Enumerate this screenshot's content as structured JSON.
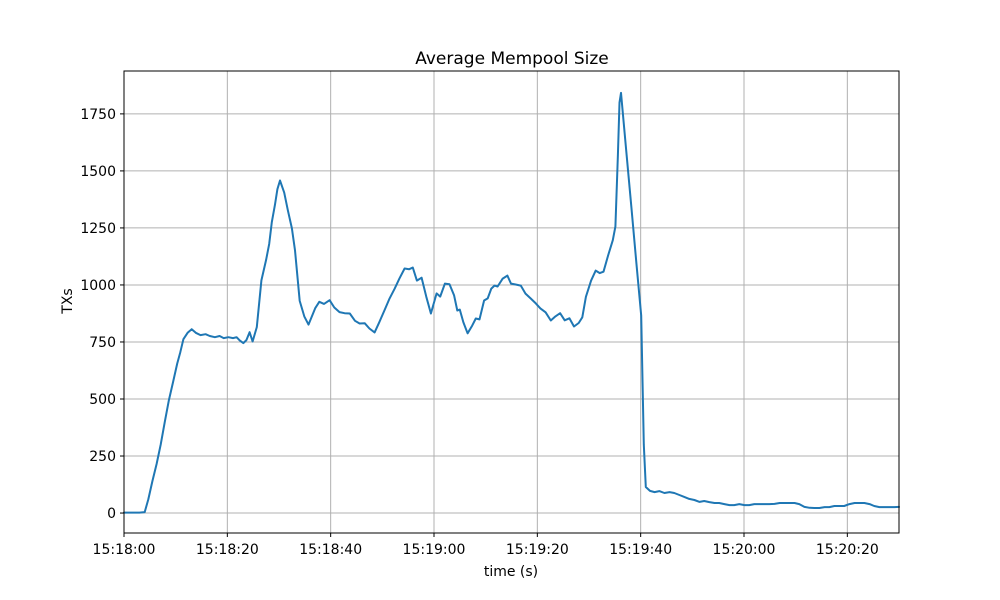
{
  "figure": {
    "background": "#ffffff"
  },
  "chart_data": {
    "type": "line",
    "title": "Average Mempool Size",
    "xlabel": "time (s)",
    "ylabel": "TXs",
    "legend": "none",
    "grid": true,
    "line_color": "#1f77b4",
    "grid_color": "#b0b0b0",
    "x_tick_labels": [
      "15:18:00",
      "15:18:20",
      "15:18:40",
      "15:19:00",
      "15:19:20",
      "15:19:40",
      "15:20:00",
      "15:20:20"
    ],
    "x_tick_seconds": [
      0,
      20,
      40,
      60,
      80,
      100,
      120,
      140
    ],
    "y_ticks": [
      0,
      250,
      500,
      750,
      1000,
      1250,
      1500,
      1750
    ],
    "xlim_seconds": [
      0,
      150
    ],
    "ylim": [
      -87.5,
      1938
    ],
    "series": [
      {
        "name": "average mempool size",
        "points": [
          [
            0,
            2
          ],
          [
            1,
            2
          ],
          [
            2,
            2
          ],
          [
            3,
            2
          ],
          [
            4,
            4
          ],
          [
            4.7,
            60
          ],
          [
            5.5,
            140
          ],
          [
            6.3,
            215
          ],
          [
            7.1,
            300
          ],
          [
            7.9,
            400
          ],
          [
            8.7,
            495
          ],
          [
            9.5,
            575
          ],
          [
            10.3,
            655
          ],
          [
            10.9,
            705
          ],
          [
            11.5,
            762
          ],
          [
            12.3,
            790
          ],
          [
            13.1,
            806
          ],
          [
            13.9,
            790
          ],
          [
            14.8,
            780
          ],
          [
            15.8,
            784
          ],
          [
            16.6,
            776
          ],
          [
            17.6,
            771
          ],
          [
            18.5,
            776
          ],
          [
            19.3,
            767
          ],
          [
            20.2,
            771
          ],
          [
            21.1,
            767
          ],
          [
            21.8,
            771
          ],
          [
            22.4,
            757
          ],
          [
            23.1,
            745
          ],
          [
            23.7,
            758
          ],
          [
            24.3,
            793
          ],
          [
            24.9,
            752
          ],
          [
            25.7,
            815
          ],
          [
            26.6,
            1020
          ],
          [
            27.5,
            1110
          ],
          [
            28.1,
            1180
          ],
          [
            28.6,
            1275
          ],
          [
            29.2,
            1350
          ],
          [
            29.7,
            1420
          ],
          [
            30.2,
            1458
          ],
          [
            31,
            1405
          ],
          [
            31.7,
            1328
          ],
          [
            32.5,
            1248
          ],
          [
            33.1,
            1152
          ],
          [
            34,
            930
          ],
          [
            34.9,
            862
          ],
          [
            35.7,
            826
          ],
          [
            37,
            898
          ],
          [
            37.8,
            926
          ],
          [
            38.7,
            917
          ],
          [
            39.8,
            933
          ],
          [
            40.7,
            901
          ],
          [
            41.7,
            881
          ],
          [
            42.7,
            876
          ],
          [
            43.7,
            875
          ],
          [
            44.7,
            843
          ],
          [
            45.6,
            831
          ],
          [
            46.6,
            832
          ],
          [
            47.5,
            809
          ],
          [
            48.5,
            792
          ],
          [
            49.4,
            836
          ],
          [
            50.4,
            888
          ],
          [
            51.4,
            941
          ],
          [
            52.4,
            984
          ],
          [
            53.3,
            1028
          ],
          [
            54.3,
            1072
          ],
          [
            55.2,
            1069
          ],
          [
            55.9,
            1076
          ],
          [
            56.7,
            1019
          ],
          [
            57.6,
            1032
          ],
          [
            58.5,
            948
          ],
          [
            59.4,
            875
          ],
          [
            60.5,
            963
          ],
          [
            61.2,
            949
          ],
          [
            62.1,
            1006
          ],
          [
            63,
            1003
          ],
          [
            63.9,
            954
          ],
          [
            64.5,
            888
          ],
          [
            65,
            892
          ],
          [
            65.7,
            836
          ],
          [
            66.5,
            788
          ],
          [
            67.4,
            822
          ],
          [
            68.1,
            853
          ],
          [
            68.8,
            849
          ],
          [
            69.7,
            932
          ],
          [
            70.4,
            941
          ],
          [
            71.1,
            984
          ],
          [
            71.7,
            997
          ],
          [
            72.3,
            993
          ],
          [
            73.3,
            1028
          ],
          [
            74.2,
            1041
          ],
          [
            74.9,
            1006
          ],
          [
            75.8,
            1002
          ],
          [
            76.8,
            997
          ],
          [
            77.7,
            962
          ],
          [
            78.7,
            941
          ],
          [
            79.7,
            919
          ],
          [
            80.6,
            897
          ],
          [
            81.6,
            880
          ],
          [
            82.6,
            844
          ],
          [
            83.5,
            862
          ],
          [
            84.4,
            876
          ],
          [
            85.3,
            845
          ],
          [
            86.2,
            854
          ],
          [
            87.1,
            818
          ],
          [
            88,
            833
          ],
          [
            88.7,
            858
          ],
          [
            89.4,
            948
          ],
          [
            90.4,
            1019
          ],
          [
            91.3,
            1063
          ],
          [
            92.1,
            1052
          ],
          [
            92.8,
            1058
          ],
          [
            93.7,
            1129
          ],
          [
            94.6,
            1196
          ],
          [
            95.1,
            1256
          ],
          [
            95.6,
            1570
          ],
          [
            95.9,
            1800
          ],
          [
            96.2,
            1842
          ],
          [
            97.2,
            1590
          ],
          [
            98.2,
            1340
          ],
          [
            99.2,
            1090
          ],
          [
            100.1,
            866
          ],
          [
            100.6,
            300
          ],
          [
            101,
            114
          ],
          [
            101.8,
            97
          ],
          [
            102.7,
            92
          ],
          [
            103.6,
            96
          ],
          [
            104.6,
            88
          ],
          [
            105.6,
            92
          ],
          [
            106.5,
            88
          ],
          [
            107.5,
            79
          ],
          [
            108.5,
            70
          ],
          [
            109.4,
            62
          ],
          [
            110.4,
            57
          ],
          [
            111.4,
            49
          ],
          [
            112.3,
            53
          ],
          [
            113.3,
            48
          ],
          [
            114.3,
            44
          ],
          [
            115.2,
            44
          ],
          [
            116.2,
            39
          ],
          [
            117.2,
            35
          ],
          [
            118.1,
            35
          ],
          [
            119.1,
            39
          ],
          [
            120.1,
            35
          ],
          [
            121,
            35
          ],
          [
            122,
            39
          ],
          [
            123,
            39
          ],
          [
            123.9,
            39
          ],
          [
            124.9,
            39
          ],
          [
            125.9,
            40
          ],
          [
            126.9,
            44
          ],
          [
            127.8,
            44
          ],
          [
            128.8,
            44
          ],
          [
            129.8,
            44
          ],
          [
            130.7,
            39
          ],
          [
            131.7,
            27
          ],
          [
            132.7,
            23
          ],
          [
            133.6,
            22
          ],
          [
            134.6,
            22
          ],
          [
            135.6,
            26
          ],
          [
            136.5,
            26
          ],
          [
            137.5,
            31
          ],
          [
            138.5,
            31
          ],
          [
            139.4,
            31
          ],
          [
            140.4,
            39
          ],
          [
            141.4,
            44
          ],
          [
            142.3,
            44
          ],
          [
            143.3,
            44
          ],
          [
            144.3,
            39
          ],
          [
            145.2,
            31
          ],
          [
            146.2,
            26
          ],
          [
            147.2,
            26
          ],
          [
            148.1,
            26
          ],
          [
            149.1,
            26
          ],
          [
            150,
            27
          ]
        ]
      }
    ]
  }
}
